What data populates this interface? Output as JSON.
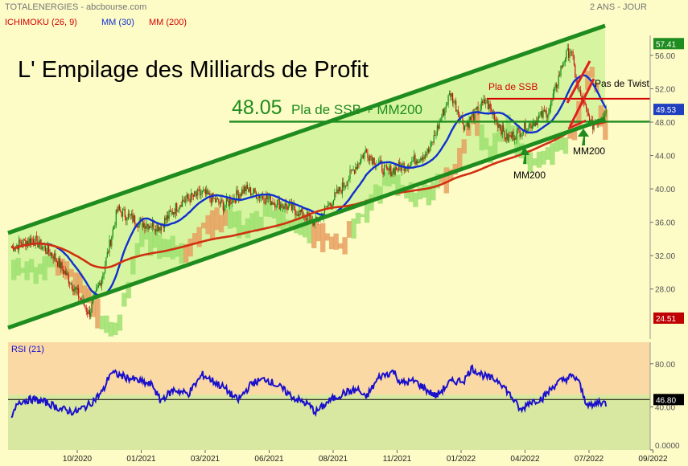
{
  "header": {
    "source": "TOTALENERGIES - abcbourse.com",
    "period": "2 ANS - JOUR",
    "legend": [
      {
        "label": "ICHIMOKU (26, 9)",
        "color": "#d40000"
      },
      {
        "label": "MM (30)",
        "color": "#1030d0"
      },
      {
        "label": "MM (200)",
        "color": "#d40000"
      }
    ]
  },
  "chart_data": [
    {
      "type": "candlestick",
      "title": "L' Empilage des Milliards de Profit",
      "y_ticks": [
        "56.00",
        "52.00",
        "48.00",
        "44.00",
        "40.00",
        "36.00",
        "32.00",
        "28.00"
      ],
      "ylim": [
        22,
        58.4
      ],
      "x_ticks": [
        "10/2020",
        "01/2021",
        "03/2021",
        "06/2021",
        "08/2021",
        "11/2021",
        "01/2022",
        "04/2022",
        "07/2022",
        "09/2022"
      ],
      "price_badges": [
        {
          "label": "57.41",
          "value": 57.41,
          "color": "#1e8c1e"
        },
        {
          "label": "49.53",
          "value": 49.53,
          "color": "#1f3fbf"
        },
        {
          "label": "24.51",
          "value": 24.51,
          "color": "#c00000"
        }
      ],
      "approx_close_path": [
        [
          0,
          33.0
        ],
        [
          3,
          34.0
        ],
        [
          6,
          32.0
        ],
        [
          9,
          28.0
        ],
        [
          11,
          25.0
        ],
        [
          13,
          30.0
        ],
        [
          15,
          37.5
        ],
        [
          18,
          36.0
        ],
        [
          21,
          35.5
        ],
        [
          24,
          38.5
        ],
        [
          27,
          39.5
        ],
        [
          30,
          38.0
        ],
        [
          33,
          40.0
        ],
        [
          37,
          38.5
        ],
        [
          40,
          37.5
        ],
        [
          43,
          36.0
        ],
        [
          47,
          40.5
        ],
        [
          50,
          44.5
        ],
        [
          53,
          42.0
        ],
        [
          56,
          43.0
        ],
        [
          59,
          44.5
        ],
        [
          62,
          51.5
        ],
        [
          64,
          47.5
        ],
        [
          67,
          50.5
        ],
        [
          70,
          46.0
        ],
        [
          73,
          47.5
        ],
        [
          76,
          49.5
        ],
        [
          78,
          55.5
        ],
        [
          79,
          56.8
        ],
        [
          80,
          52.0
        ],
        [
          82,
          47.5
        ],
        [
          84,
          49.5
        ]
      ],
      "annotations": [
        {
          "text": "48.05",
          "color": "#1e8c1e"
        },
        {
          "text": "Pla de SSB + MM200",
          "color": "#1e8c1e"
        },
        {
          "text": "Pla de SSB",
          "color": "#d40000"
        },
        {
          "text": "Pas de Twist",
          "color": "#000000"
        },
        {
          "text": "MM200",
          "color": "#000000"
        },
        {
          "text": "MM200",
          "color": "#000000"
        }
      ],
      "levels": [
        {
          "name": "Pla de SSB",
          "value": 50.8,
          "color": "#d40000"
        },
        {
          "name": "Pla de SSB + MM200",
          "value": 48.05,
          "color": "#1e8c1e"
        }
      ]
    },
    {
      "type": "line",
      "title": "RSI (21)",
      "y_ticks": [
        "80.00",
        "40.00",
        "0.0000"
      ],
      "ylim": [
        0,
        100
      ],
      "value_badge": {
        "label": "46.80",
        "value": 46.8
      },
      "reference_level": 46.8,
      "approx_path": [
        [
          0,
          28
        ],
        [
          1,
          45
        ],
        [
          3,
          47
        ],
        [
          5,
          44
        ],
        [
          7,
          38
        ],
        [
          9,
          35
        ],
        [
          11,
          42
        ],
        [
          13,
          55
        ],
        [
          14,
          72
        ],
        [
          16,
          68
        ],
        [
          18,
          64
        ],
        [
          20,
          60
        ],
        [
          21,
          46
        ],
        [
          23,
          56
        ],
        [
          25,
          52
        ],
        [
          27,
          70
        ],
        [
          28,
          66
        ],
        [
          30,
          58
        ],
        [
          32,
          46
        ],
        [
          34,
          62
        ],
        [
          36,
          66
        ],
        [
          38,
          58
        ],
        [
          40,
          48
        ],
        [
          42,
          42
        ],
        [
          43,
          35
        ],
        [
          45,
          46
        ],
        [
          47,
          53
        ],
        [
          49,
          56
        ],
        [
          50,
          48
        ],
        [
          52,
          68
        ],
        [
          54,
          73
        ],
        [
          55,
          62
        ],
        [
          57,
          64
        ],
        [
          59,
          54
        ],
        [
          60,
          50
        ],
        [
          62,
          63
        ],
        [
          64,
          65
        ],
        [
          65,
          76
        ],
        [
          67,
          68
        ],
        [
          69,
          64
        ],
        [
          71,
          46
        ],
        [
          72,
          36
        ],
        [
          73,
          44
        ],
        [
          75,
          48
        ],
        [
          77,
          62
        ],
        [
          79,
          68
        ],
        [
          80,
          66
        ],
        [
          81,
          46
        ],
        [
          82,
          40
        ],
        [
          83,
          45
        ],
        [
          84,
          43
        ]
      ]
    }
  ]
}
